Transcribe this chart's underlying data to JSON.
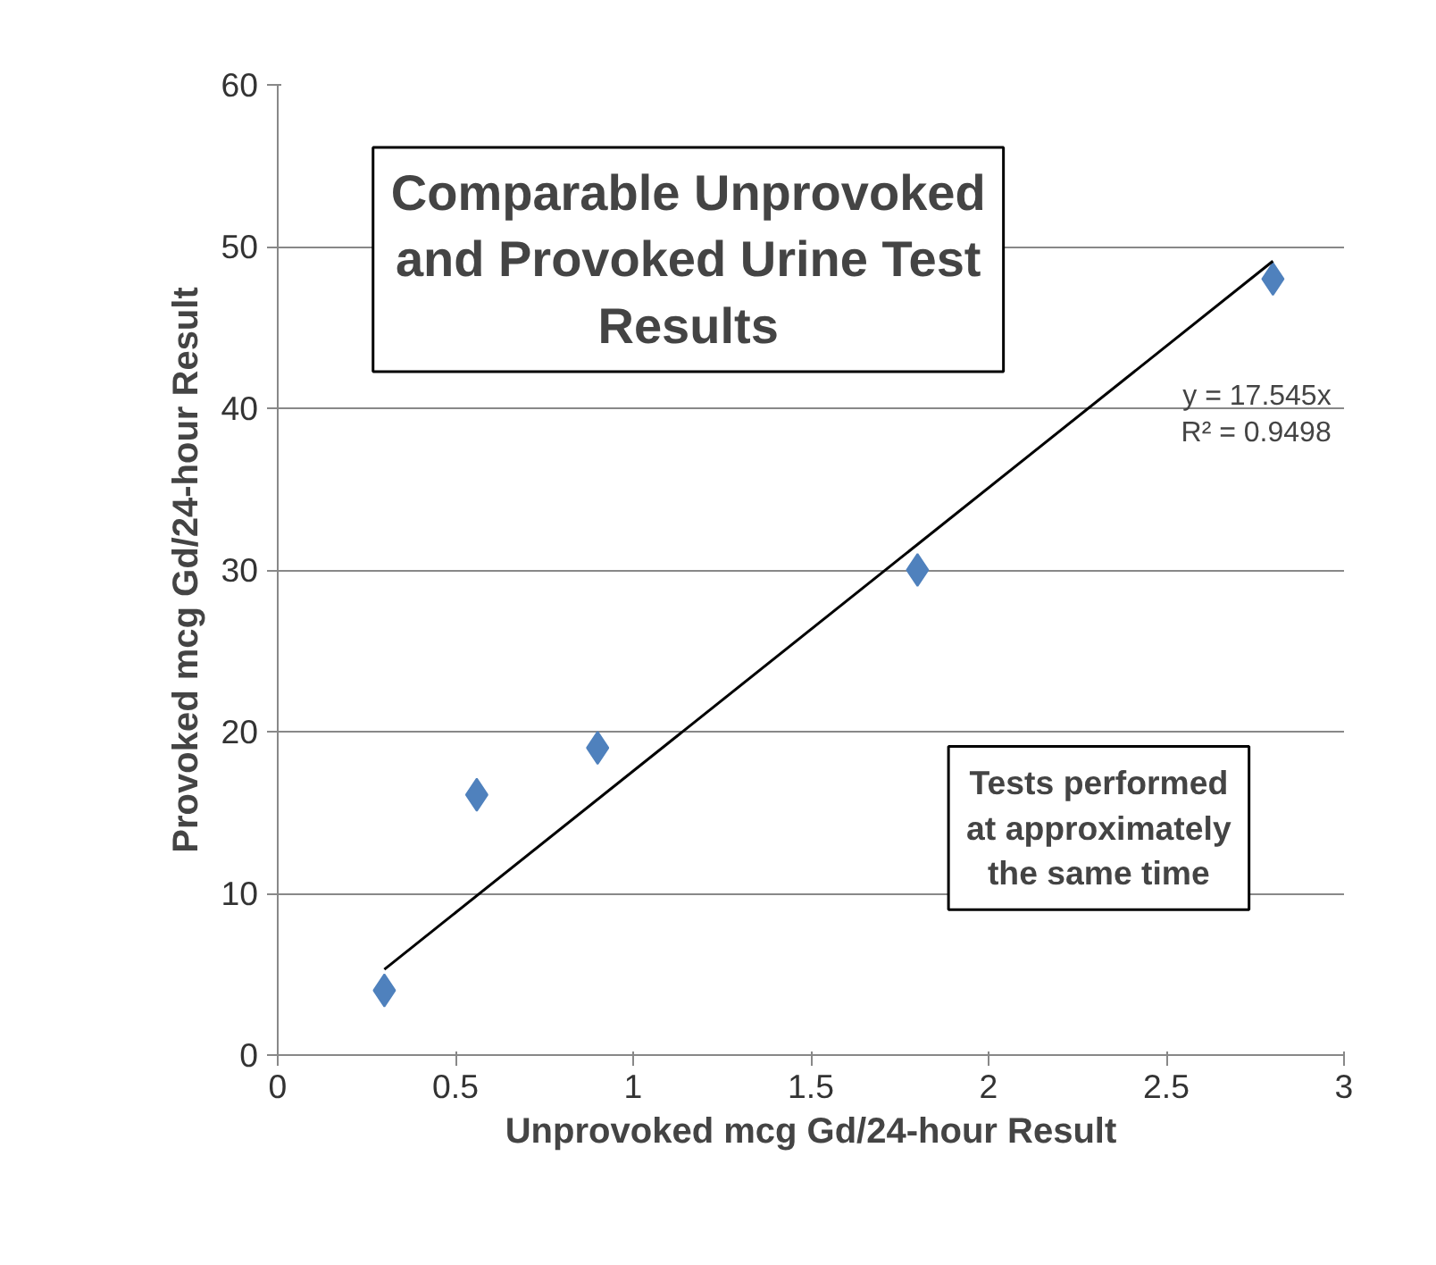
{
  "chart_data": {
    "type": "scatter",
    "title": "Comparable Unprovoked and Provoked Urine Test Results",
    "xlabel": "Unprovoked mcg Gd/24-hour Result",
    "ylabel": "Provoked mcg Gd/24-hour Result",
    "x": [
      0.3,
      0.56,
      0.9,
      1.8,
      2.8
    ],
    "series": [
      {
        "color": "#4f81bd",
        "marker": "diamond",
        "values": [
          4,
          16.1,
          19,
          30,
          48
        ]
      },
      {
        "type": "line",
        "color": "#000000",
        "x": [
          0.3,
          2.8
        ],
        "values": [
          5.3,
          49.1
        ]
      }
    ],
    "annotations": [
      "y = 17.545x\nR² = 0.9498",
      "Tests performed at approximately the same time"
    ],
    "xlim": [
      0,
      3
    ],
    "xticks": [
      0,
      0.5,
      1,
      1.5,
      2,
      2.5,
      3
    ],
    "ylim": [
      0,
      60
    ],
    "yticks": [
      0,
      10,
      20,
      30,
      40,
      50,
      60
    ],
    "grid": "y"
  }
}
